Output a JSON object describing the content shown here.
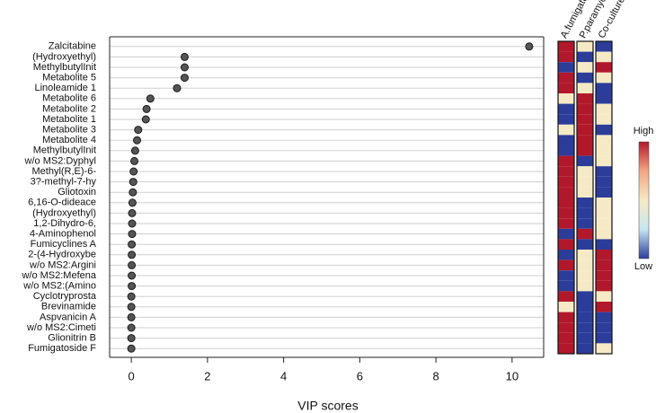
{
  "chart_data": {
    "type": "dot",
    "categories": [
      "Zalcitabine",
      "(Hydroxyethyl)",
      "MethylbutylInit",
      "Metabolite 5",
      "Linoleamide 1",
      "Metabolite 6",
      "Metabolite 2",
      "Metabolite 1",
      "Metabolite 3",
      "Metabolite 4",
      "MethylbutylInit",
      "w/o MS2:Dyphyl",
      "Methyl(R,E)-6-",
      "3?-methyl-7-hy",
      "Gliotoxin",
      "6,16-O-dideace",
      "(Hydroxyethyl)",
      "1,2-Dihydro-6,",
      "4-Aminophenol",
      "Fumicyclines A",
      "2-(4-Hydroxybe",
      "w/o MS2:Argini",
      "w/o MS2:Mefena",
      "w/o MS2:(Amino",
      "Cyclotryprosta",
      "Brevinamide",
      "Aspvanicin A",
      "w/o MS2:Cimeti",
      "Glionitrin B",
      "Fumigatoside F"
    ],
    "values": [
      10.45,
      1.4,
      1.4,
      1.4,
      1.2,
      0.5,
      0.4,
      0.38,
      0.18,
      0.15,
      0.1,
      0.08,
      0.06,
      0.05,
      0.04,
      0.03,
      0.02,
      0.02,
      0.02,
      0.01,
      0.01,
      0.01,
      0.01,
      0.01,
      0,
      0,
      0,
      0,
      0,
      0
    ],
    "color": "#555555",
    "xlabel": "VIP scores",
    "xlim": [
      -0.57,
      10.83
    ],
    "xticks": [
      0,
      2,
      4,
      6,
      8,
      10
    ],
    "grid": true,
    "heatmap": {
      "columns": [
        "A.fumigatus",
        "P.paramycoides",
        "Co-culture"
      ],
      "colors": [
        [
          "#b2182b",
          "#f6eac6",
          "#2c3d99"
        ],
        [
          "#b2182b",
          "#2c3d99",
          "#f6eac6"
        ],
        [
          "#2c3d99",
          "#f6eac6",
          "#b2182b"
        ],
        [
          "#b2182b",
          "#2c3d99",
          "#f6eac6"
        ],
        [
          "#b2182b",
          "#f6eac6",
          "#2c3d99"
        ],
        [
          "#f6eac6",
          "#b2182b",
          "#2c3d99"
        ],
        [
          "#2c3d99",
          "#b2182b",
          "#f6eac6"
        ],
        [
          "#2c3d99",
          "#b2182b",
          "#f6eac6"
        ],
        [
          "#f6eac6",
          "#b2182b",
          "#2c3d99"
        ],
        [
          "#2c3d99",
          "#b2182b",
          "#f6eac6"
        ],
        [
          "#2c3d99",
          "#b2182b",
          "#f6eac6"
        ],
        [
          "#b2182b",
          "#2c3d99",
          "#f6eac6"
        ],
        [
          "#b2182b",
          "#f6eac6",
          "#2c3d99"
        ],
        [
          "#b2182b",
          "#f6eac6",
          "#2c3d99"
        ],
        [
          "#b2182b",
          "#f6eac6",
          "#2c3d99"
        ],
        [
          "#b2182b",
          "#2c3d99",
          "#f6eac6"
        ],
        [
          "#b2182b",
          "#2c3d99",
          "#f6eac6"
        ],
        [
          "#b2182b",
          "#2c3d99",
          "#f6eac6"
        ],
        [
          "#2c3d99",
          "#b2182b",
          "#f6eac6"
        ],
        [
          "#b2182b",
          "#2c3d99",
          "#2c3d99"
        ],
        [
          "#2c3d99",
          "#f6eac6",
          "#b2182b"
        ],
        [
          "#b2182b",
          "#f6eac6",
          "#b2182b"
        ],
        [
          "#2c3d99",
          "#f6eac6",
          "#b2182b"
        ],
        [
          "#2c3d99",
          "#f6eac6",
          "#b2182b"
        ],
        [
          "#b2182b",
          "#2c3d99",
          "#f6eac6"
        ],
        [
          "#f6eac6",
          "#2c3d99",
          "#b2182b"
        ],
        [
          "#b2182b",
          "#2c3d99",
          "#2c3d99"
        ],
        [
          "#b2182b",
          "#2c3d99",
          "#2c3d99"
        ],
        [
          "#b2182b",
          "#2c3d99",
          "#2c3d99"
        ],
        [
          "#b2182b",
          "#2c3d99",
          "#f6eac6"
        ]
      ]
    },
    "legend": {
      "high": "High",
      "low": "Low",
      "colors": [
        "#b2182b",
        "#f4a582",
        "#f6eac6",
        "#c7e6f0",
        "#2c3d99"
      ]
    }
  }
}
